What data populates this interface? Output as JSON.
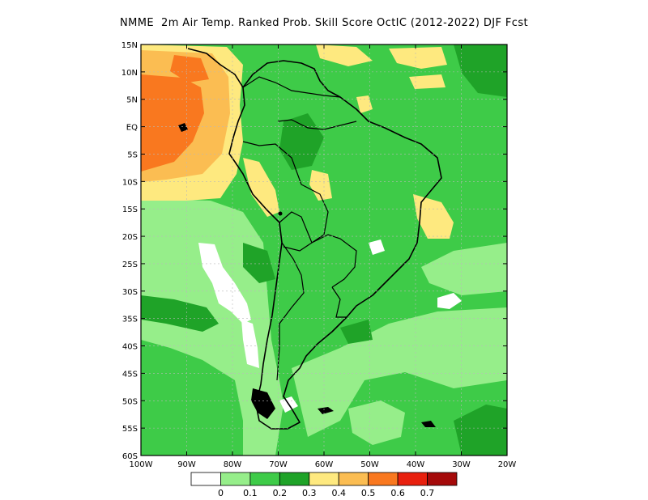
{
  "title": "NMME  2m Air Temp. Ranked Prob. Skill Score OctIC (2012-2022) DJF Fcst",
  "axes": {
    "lat_labels": [
      "15N",
      "10N",
      "5N",
      "EQ",
      "5S",
      "10S",
      "15S",
      "20S",
      "25S",
      "30S",
      "35S",
      "40S",
      "45S",
      "50S",
      "55S",
      "60S"
    ],
    "lon_labels": [
      "100W",
      "90W",
      "80W",
      "70W",
      "60W",
      "50W",
      "40W",
      "30W",
      "20W"
    ]
  },
  "colorbar": {
    "colors": [
      "#ffffff",
      "#96ee8a",
      "#3ecb48",
      "#1fa328",
      "#fee97f",
      "#fbbd52",
      "#f9781f",
      "#e8200e",
      "#a50a0a"
    ],
    "labels": [
      "0",
      "0.1",
      "0.2",
      "0.3",
      "0.4",
      "0.5",
      "0.6",
      "0.7"
    ]
  },
  "colors": {
    "land_outline": "#000000",
    "gridline": "#b9b9b9"
  }
}
